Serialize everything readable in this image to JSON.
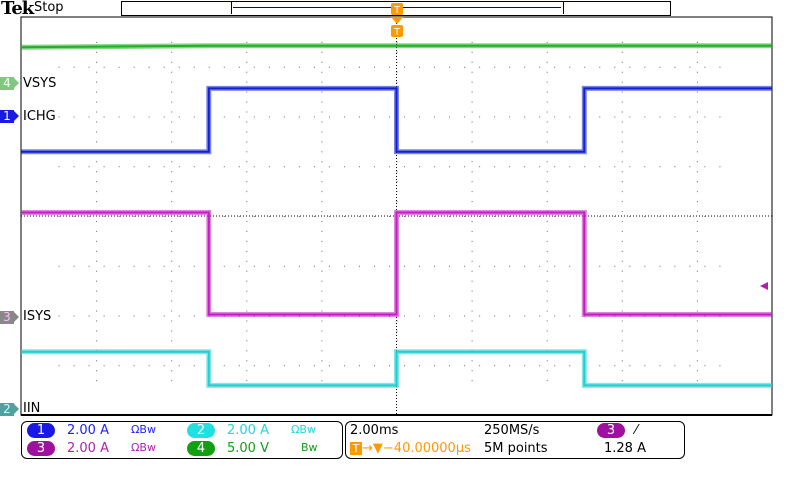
{
  "header": {
    "brand": "Tek",
    "status": "Stop"
  },
  "chart_data": {
    "type": "line",
    "xlabel": "",
    "ylabel": "",
    "x_unit": "ms",
    "xlim": [
      -10,
      10
    ],
    "grid": true,
    "series": [
      {
        "name": "VSYS",
        "channel": "4",
        "scale": "5.00 V",
        "unit": "V",
        "color": "#22b022",
        "points": [
          [
            -10,
            3.6
          ],
          [
            -5,
            3.75
          ],
          [
            10,
            3.75
          ]
        ]
      },
      {
        "name": "ICHG",
        "channel": "1",
        "scale": "2.00 A",
        "unit": "A",
        "color": "#1020d0",
        "points": [
          [
            -10,
            -1.4
          ],
          [
            -5,
            -1.4
          ],
          [
            -5,
            1.15
          ],
          [
            0,
            1.15
          ],
          [
            0,
            -1.4
          ],
          [
            5,
            -1.4
          ],
          [
            5,
            1.15
          ],
          [
            10,
            1.15
          ]
        ]
      },
      {
        "name": "ISYS",
        "channel": "3",
        "scale": "2.00 A",
        "unit": "A",
        "color": "#c020c0",
        "points": [
          [
            -10,
            4.2
          ],
          [
            -5,
            4.2
          ],
          [
            -5,
            0.1
          ],
          [
            0,
            0.1
          ],
          [
            0,
            4.2
          ],
          [
            5,
            4.2
          ],
          [
            5,
            0.1
          ],
          [
            10,
            0.1
          ]
        ]
      },
      {
        "name": "IIN",
        "channel": "2",
        "scale": "2.00 A",
        "unit": "A",
        "color": "#20d0d0",
        "points": [
          [
            -10,
            2.3
          ],
          [
            -5,
            2.3
          ],
          [
            -5,
            0.95
          ],
          [
            0,
            0.95
          ],
          [
            0,
            2.3
          ],
          [
            5,
            2.3
          ],
          [
            5,
            0.95
          ],
          [
            10,
            0.95
          ]
        ]
      }
    ]
  },
  "channels": [
    {
      "num": "1",
      "scale": "2.00 A",
      "bw": "ΩBw",
      "color": "#1a1ae6",
      "text": "#2020ff"
    },
    {
      "num": "2",
      "scale": "2.00 A",
      "bw": "ΩBw",
      "color": "#22e0e0",
      "text": "#20d8d8"
    },
    {
      "num": "3",
      "scale": "2.00 A",
      "bw": "ΩBw",
      "color": "#a010a0",
      "text": "#b020b0"
    },
    {
      "num": "4",
      "scale": "5.00 V",
      "bw": "Bw",
      "color": "#10a010",
      "text": "#10a010"
    }
  ],
  "horizontal": {
    "timebase": "2.00ms",
    "sample_rate": "250MS/s",
    "delay": "▼−40.00000µs",
    "record": "5M points"
  },
  "trigger": {
    "source": "3",
    "slope": "⁄",
    "level": "1.28 A",
    "color": "#ff9900"
  }
}
